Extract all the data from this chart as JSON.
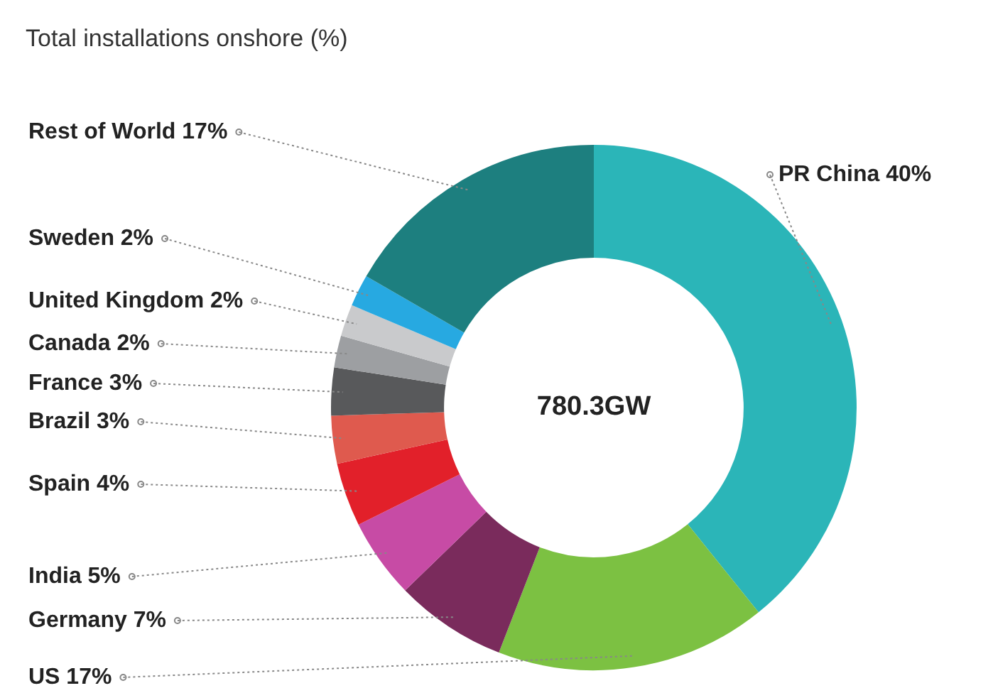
{
  "chart_data": {
    "type": "donut",
    "title": "Total installations onshore (%)",
    "categories": [
      "PR China",
      "US",
      "Germany",
      "India",
      "Spain",
      "Brazil",
      "France",
      "Canada",
      "United Kingdom",
      "Sweden",
      "Rest of World"
    ],
    "values": [
      40,
      17,
      7,
      5,
      4,
      3,
      3,
      2,
      2,
      2,
      17
    ],
    "value_labels": [
      "40%",
      "17%",
      "7%",
      "5%",
      "4%",
      "3%",
      "3%",
      "2%",
      "2%",
      "2%",
      "17%"
    ],
    "colors": [
      "#2bb5b8",
      "#7cc142",
      "#7a2b5c",
      "#c74ba5",
      "#e2202a",
      "#df5a4e",
      "#58595b",
      "#9d9fa2",
      "#c9cacc",
      "#27a9e1",
      "#1d7f7f"
    ],
    "annotations": [
      "780.3GW"
    ],
    "legend": false
  }
}
